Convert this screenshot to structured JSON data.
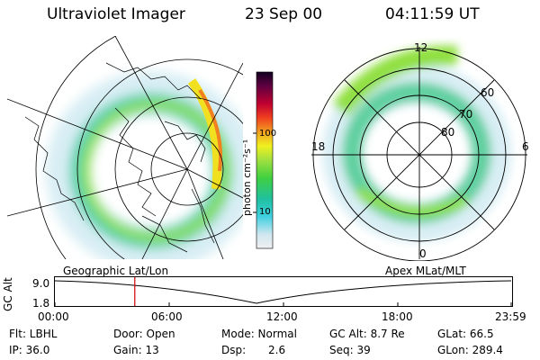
{
  "header": {
    "instrument": "Ultraviolet Imager",
    "date": "23 Sep 00",
    "time": "04:11:59 UT"
  },
  "colorbar": {
    "label": "photon cm⁻²s⁻¹",
    "ticks": [
      "100",
      "10"
    ],
    "scale": "log",
    "colors": [
      "#f0f0f0",
      "#cfe6f0",
      "#40d0e0",
      "#20c0a0",
      "#40d040",
      "#a0e040",
      "#f0f020",
      "#f0a020",
      "#f04020",
      "#c00030",
      "#600040",
      "#100020"
    ]
  },
  "left_map": {
    "label": "Geographic Lat/Lon"
  },
  "right_map": {
    "label": "Apex MLat/MLT",
    "mlt_labels": {
      "top": "12",
      "left": "18",
      "right": "6",
      "bottom": "0"
    },
    "lat_labels": [
      "60",
      "70",
      "80"
    ]
  },
  "altitude_plot": {
    "ylabel": "GC Alt",
    "y_ticks": [
      "9.0",
      "1.8"
    ],
    "x_ticks": [
      "00:00",
      "06:00",
      "12:00",
      "18:00",
      "23:59"
    ],
    "marker_time": "04:11:59",
    "marker_color": "#d00000"
  },
  "info": {
    "flt": "Flt: LBHL",
    "door": "Door: Open",
    "mode": "Mode: Normal",
    "gc_alt": "GC Alt: 8.7 Re",
    "glat": "GLat: 66.5",
    "ip": "IP: 36.0",
    "gain": "Gain: 13",
    "dsp_label": "Dsp:",
    "dsp_value": "2.6",
    "seq": "Seq: 39",
    "glon": "GLon: 289.4"
  }
}
